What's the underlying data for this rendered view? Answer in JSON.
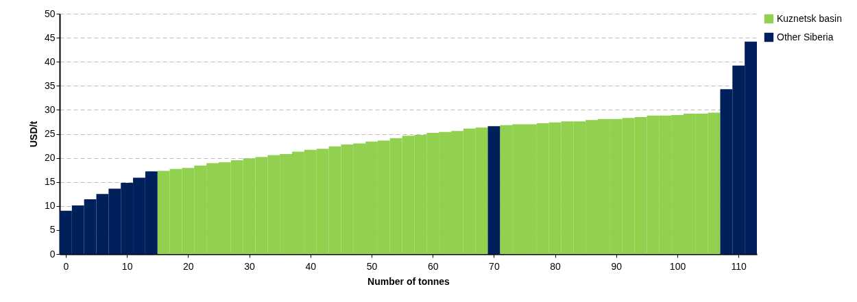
{
  "chart_data": {
    "type": "bar",
    "xlabel": "Number of tonnes",
    "ylabel": "USD/t",
    "xlim": [
      -1,
      113
    ],
    "xticks": [
      0,
      10,
      20,
      30,
      40,
      50,
      60,
      70,
      80,
      90,
      100,
      110
    ],
    "ylim": [
      0,
      50
    ],
    "yticks": [
      0,
      5,
      10,
      15,
      20,
      25,
      30,
      35,
      40,
      45,
      50
    ],
    "grid": "y",
    "legend": "top right",
    "series": [
      {
        "name": "Kuznetsk basin",
        "color": "#92d050",
        "x": [
          16,
          18,
          20,
          22,
          24,
          26,
          28,
          30,
          32,
          34,
          36,
          38,
          40,
          42,
          44,
          46,
          48,
          50,
          52,
          54,
          56,
          58,
          60,
          62,
          64,
          66,
          68,
          72,
          74,
          76,
          78,
          80,
          82,
          84,
          86,
          88,
          90,
          92,
          94,
          96,
          98,
          100,
          102,
          104,
          106
        ],
        "values": [
          17.3,
          17.7,
          17.9,
          18.4,
          18.9,
          19.1,
          19.5,
          19.9,
          20.2,
          20.6,
          20.8,
          21.3,
          21.7,
          21.9,
          22.4,
          22.8,
          23.0,
          23.4,
          23.6,
          24.1,
          24.6,
          24.8,
          25.2,
          25.4,
          25.6,
          26.1,
          26.3,
          26.8,
          27.0,
          27.0,
          27.2,
          27.4,
          27.6,
          27.6,
          27.9,
          28.1,
          28.1,
          28.3,
          28.5,
          28.8,
          28.8,
          28.9,
          29.2,
          29.2,
          29.4
        ]
      },
      {
        "name": "Other Siberia",
        "color": "#00205b",
        "x": [
          0,
          2,
          4,
          6,
          8,
          10,
          12,
          14,
          70,
          108,
          110,
          112
        ],
        "values": [
          9.0,
          10.1,
          11.4,
          12.5,
          13.6,
          14.8,
          15.9,
          17.2,
          26.6,
          34.3,
          39.2,
          44.2
        ]
      }
    ]
  }
}
